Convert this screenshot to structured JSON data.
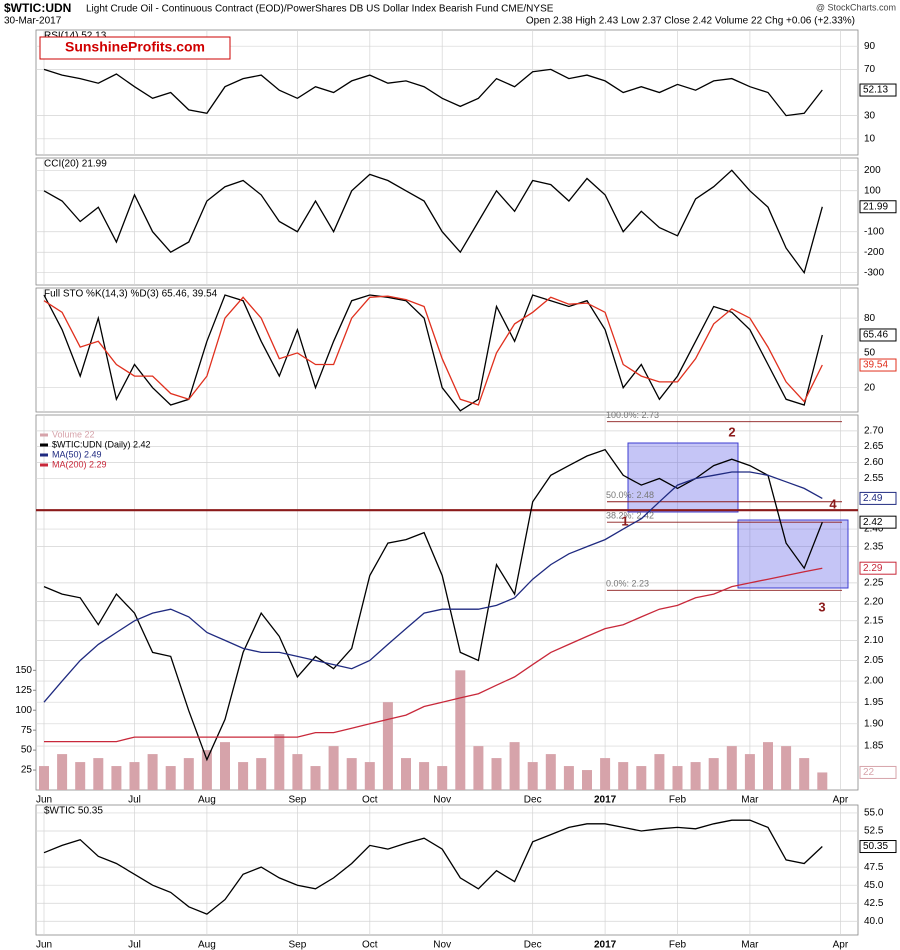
{
  "header": {
    "symbol": "$WTIC:UDN",
    "description": "Light Crude Oil - Continuous Contract (EOD)/PowerShares DB US Dollar Index Bearish Fund CME/NYSE",
    "date": "30-Mar-2017",
    "quote": "Open 2.38 High 2.43 Low 2.37 Close 2.42 Volume 22 Chg +0.06 (+2.33%)",
    "source": "@ StockCharts.com",
    "watermark": "SunshineProfits.com"
  },
  "chart_data": [
    {
      "type": "line",
      "title": "RSI(14) 52.13",
      "ylim": [
        -4,
        104
      ],
      "yticks": [
        90,
        70,
        30,
        10
      ],
      "grid": true,
      "series": [
        {
          "color": "#000000",
          "values": [
            70,
            65,
            62,
            58,
            66,
            55,
            45,
            50,
            35,
            32,
            55,
            62,
            65,
            52,
            45,
            55,
            50,
            60,
            65,
            58,
            60,
            55,
            45,
            38,
            45,
            62,
            55,
            68,
            70,
            62,
            65,
            60,
            50,
            55,
            50,
            57,
            52,
            60,
            62,
            55,
            50,
            30,
            32,
            52.13,
            null
          ]
        }
      ]
    },
    {
      "type": "line",
      "title": "CCI(20) 21.99",
      "ylim": [
        -360,
        260
      ],
      "yticks": [
        200,
        100,
        -100,
        -200,
        -300
      ],
      "grid": true,
      "series": [
        {
          "color": "#000000",
          "values": [
            100,
            50,
            -50,
            20,
            -150,
            80,
            -100,
            -200,
            -150,
            50,
            120,
            150,
            80,
            -50,
            -100,
            50,
            -100,
            100,
            180,
            150,
            100,
            50,
            -100,
            -200,
            -50,
            100,
            0,
            150,
            130,
            50,
            160,
            80,
            -100,
            0,
            -80,
            -120,
            60,
            120,
            200,
            100,
            20,
            -180,
            -300,
            21.99,
            null
          ]
        }
      ]
    },
    {
      "type": "line",
      "title": "Full STO %K(14,3) %D(3) 65.46, 39.54",
      "ylim": [
        -1,
        106
      ],
      "yticks": [
        80,
        50,
        20
      ],
      "grid": true,
      "series": [
        {
          "color": "#000000",
          "values": [
            100,
            70,
            30,
            80,
            10,
            40,
            20,
            5,
            10,
            60,
            100,
            95,
            60,
            30,
            70,
            20,
            60,
            95,
            100,
            98,
            95,
            80,
            20,
            0,
            10,
            90,
            60,
            100,
            95,
            90,
            95,
            70,
            20,
            40,
            10,
            30,
            60,
            90,
            85,
            70,
            40,
            10,
            5,
            65.46,
            null
          ]
        },
        {
          "color": "#e0301e",
          "values": [
            95,
            85,
            55,
            60,
            40,
            30,
            30,
            15,
            10,
            30,
            80,
            98,
            80,
            45,
            50,
            40,
            40,
            80,
            98,
            99,
            96,
            90,
            45,
            10,
            5,
            50,
            75,
            85,
            98,
            92,
            93,
            85,
            40,
            30,
            25,
            25,
            45,
            75,
            88,
            80,
            55,
            25,
            8,
            39.54,
            null
          ]
        }
      ]
    },
    {
      "type": "line",
      "log_scale": true,
      "grid": true,
      "categories": [
        "Jun",
        null,
        null,
        null,
        null,
        "Jul",
        null,
        null,
        null,
        "Aug",
        null,
        null,
        null,
        null,
        "Sep",
        null,
        null,
        null,
        "Oct",
        null,
        null,
        null,
        "Nov",
        null,
        null,
        null,
        null,
        "Dec",
        null,
        null,
        null,
        "2017",
        null,
        null,
        null,
        "Feb",
        null,
        null,
        null,
        "Mar",
        null,
        null,
        null,
        null,
        "Apr"
      ],
      "ylim": [
        1.755,
        2.752
      ],
      "yticks": [
        {
          "value": 2.7,
          "label": "2.70"
        },
        2.65,
        {
          "value": 2.6,
          "label": "2.60"
        },
        2.55,
        {
          "value": 2.4,
          "label": "2.40"
        },
        2.35,
        2.25,
        {
          "value": 2.2,
          "label": "2.20"
        },
        2.15,
        {
          "value": 2.1,
          "label": "2.10"
        },
        2.05,
        {
          "value": 2,
          "label": "2.00"
        },
        1.95,
        {
          "value": 1.9,
          "label": "1.90"
        },
        1.85
      ],
      "y2lim": [
        0,
        470
      ],
      "y2ticks": [
        150,
        125,
        100,
        75,
        50,
        25
      ],
      "series": [
        {
          "name": "Volume 22",
          "color": "#d6a3aa",
          "axis": "y2",
          "kind": "bar",
          "values": [
            30,
            45,
            35,
            40,
            30,
            35,
            45,
            30,
            40,
            50,
            60,
            35,
            40,
            70,
            45,
            30,
            55,
            40,
            35,
            110,
            40,
            35,
            30,
            150,
            55,
            40,
            60,
            35,
            45,
            30,
            25,
            40,
            35,
            30,
            45,
            30,
            35,
            40,
            55,
            45,
            60,
            55,
            40,
            22,
            null
          ]
        },
        {
          "name": "$WTIC:UDN (Daily) 2.42",
          "color": "#000000",
          "values": [
            2.24,
            2.22,
            2.21,
            2.14,
            2.22,
            2.17,
            2.07,
            2.06,
            1.93,
            1.82,
            1.91,
            2.07,
            2.17,
            2.11,
            2.01,
            2.06,
            2.03,
            2.08,
            2.27,
            2.36,
            2.37,
            2.39,
            2.27,
            2.07,
            2.05,
            2.3,
            2.22,
            2.48,
            2.56,
            2.59,
            2.62,
            2.64,
            2.56,
            2.53,
            2.55,
            2.52,
            2.55,
            2.59,
            2.61,
            2.59,
            2.56,
            2.36,
            2.29,
            2.42,
            null
          ]
        },
        {
          "name": "MA(50) 2.49",
          "color": "#1f2a80",
          "values": [
            1.95,
            2.0,
            2.05,
            2.09,
            2.12,
            2.15,
            2.17,
            2.18,
            2.16,
            2.12,
            2.1,
            2.08,
            2.07,
            2.07,
            2.06,
            2.05,
            2.04,
            2.03,
            2.05,
            2.09,
            2.13,
            2.17,
            2.18,
            2.18,
            2.18,
            2.19,
            2.21,
            2.26,
            2.3,
            2.33,
            2.35,
            2.37,
            2.4,
            2.43,
            2.48,
            2.53,
            2.55,
            2.56,
            2.57,
            2.57,
            2.56,
            2.54,
            2.52,
            2.49,
            null
          ]
        },
        {
          "name": "MA(200) 2.29",
          "color": "#c8283a",
          "values": [
            1.86,
            1.86,
            1.86,
            1.86,
            1.86,
            1.87,
            1.87,
            1.87,
            1.87,
            1.87,
            1.87,
            1.87,
            1.87,
            1.87,
            1.87,
            1.88,
            1.88,
            1.89,
            1.9,
            1.91,
            1.92,
            1.94,
            1.95,
            1.96,
            1.97,
            1.99,
            2.01,
            2.04,
            2.07,
            2.09,
            2.11,
            2.13,
            2.14,
            2.16,
            2.18,
            2.19,
            2.21,
            2.22,
            2.24,
            2.25,
            2.26,
            2.27,
            2.28,
            2.29,
            null
          ]
        }
      ],
      "fib_levels": [
        {
          "value": 2.73,
          "label": "100.0%: 2.73"
        },
        {
          "value": 2.48,
          "label": "50.0%: 2.48"
        },
        {
          "value": 2.42,
          "label": "38.2%: 2.42"
        },
        {
          "value": 2.23,
          "label": "0.0%: 2.23"
        }
      ],
      "support": 2.455,
      "annotations": [
        "1",
        "2",
        "3",
        "4"
      ]
    },
    {
      "type": "line",
      "title": "$WTIC 50.35",
      "grid": true,
      "categories": [
        "Jun",
        null,
        null,
        null,
        null,
        "Jul",
        null,
        null,
        null,
        "Aug",
        null,
        null,
        null,
        null,
        "Sep",
        null,
        null,
        null,
        "Oct",
        null,
        null,
        null,
        "Nov",
        null,
        null,
        null,
        null,
        "Dec",
        null,
        null,
        null,
        "2017",
        null,
        null,
        null,
        "Feb",
        null,
        null,
        null,
        "Mar",
        null,
        null,
        null,
        null,
        "Apr"
      ],
      "ylim": [
        38.1,
        56.1
      ],
      "yticks": [
        {
          "value": 55,
          "label": "55.0"
        },
        52.5,
        47.5,
        {
          "value": 45,
          "label": "45.0"
        },
        42.5,
        {
          "value": 40,
          "label": "40.0"
        }
      ],
      "series": [
        {
          "color": "#000000",
          "values": [
            49.5,
            50.5,
            51.3,
            49.0,
            48.0,
            46.5,
            45.0,
            44.0,
            42.0,
            41.0,
            43.0,
            46.5,
            47.5,
            46.0,
            45.0,
            44.5,
            46.0,
            48.0,
            50.5,
            50.0,
            50.8,
            51.5,
            50.0,
            46.0,
            44.5,
            47.0,
            45.5,
            51.0,
            52.0,
            53.0,
            53.5,
            53.5,
            53.0,
            52.5,
            52.8,
            53.0,
            52.8,
            53.5,
            54.0,
            54.0,
            53.0,
            48.5,
            48.0,
            50.35,
            null
          ]
        }
      ]
    }
  ]
}
